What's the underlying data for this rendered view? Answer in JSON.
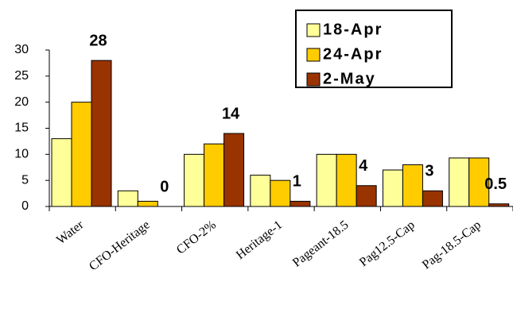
{
  "chart_data": {
    "type": "bar",
    "categories": [
      "Water",
      "CFO-Heritage",
      "CFO-2%",
      "Heritage-1",
      "Pageant-18.5",
      "Pag12.5-Cap",
      "Pag-18.5-Cap"
    ],
    "series": [
      {
        "name": "18-Apr",
        "color": "#ffff99",
        "values": [
          13,
          3,
          10,
          6,
          10,
          7,
          9.3
        ]
      },
      {
        "name": "24-Apr",
        "color": "#ffcc00",
        "values": [
          20,
          1,
          12,
          5,
          10,
          8,
          9.3
        ]
      },
      {
        "name": "2-May",
        "color": "#993300",
        "values": [
          28,
          0,
          14,
          1,
          4,
          3,
          0.5
        ]
      }
    ],
    "data_labels_series": 2,
    "ylim": [
      0,
      30
    ],
    "yticks": [
      0,
      5,
      10,
      15,
      20,
      25,
      30
    ],
    "legend": "top-right"
  }
}
